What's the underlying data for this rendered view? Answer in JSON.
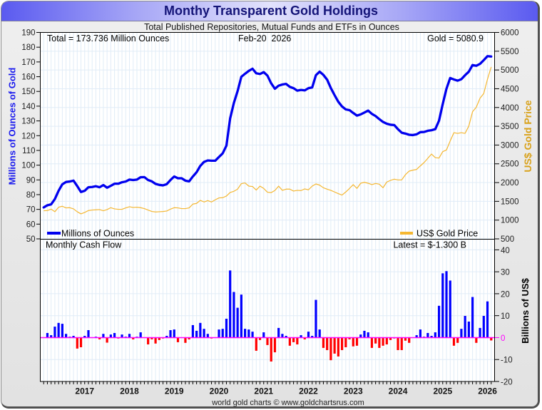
{
  "footer": "world gold charts © www.goldchartsrus.com",
  "colors": {
    "holdings": "#0000ee",
    "price": "#f5b731",
    "inflow": "#0000ff",
    "outflow": "#ff0000",
    "zero_line": "#ff00ff",
    "grid": "#e0ecf7",
    "title": "#141478"
  },
  "chart_data": [
    {
      "type": "line",
      "title": "Monthy Transparent Gold Holdings",
      "subtitle": "Total Published Repositories, Mutual Funds and ETFs in Ounces",
      "annotations": {
        "total": "Total = 173.736 Million Ounces",
        "date": "Feb-20  2026",
        "gold": "Gold = 5080.9"
      },
      "ylabel_left": "Millions of Ounces of Gold",
      "ylabel_right": "US$ Gold Price",
      "ylim_left": [
        50,
        190
      ],
      "ylim_right": [
        500,
        6000
      ],
      "y_ticks_left": [
        190,
        180,
        170,
        160,
        150,
        140,
        130,
        120,
        110,
        100,
        90,
        80,
        70,
        60,
        50
      ],
      "y_ticks_right": [
        6000,
        5500,
        5000,
        4500,
        4000,
        3500,
        3000,
        2500,
        2000,
        1500,
        1000,
        500
      ],
      "x_range": [
        "2016-01",
        "2026-03"
      ],
      "x_start": "2016-02",
      "x_tick_labels": [
        "2017",
        "2018",
        "2019",
        "2020",
        "2021",
        "2022",
        "2023",
        "2024",
        "2025",
        "2026"
      ],
      "grid": true,
      "legend": [
        "bottom-left",
        "bottom-right"
      ],
      "series": [
        {
          "name": "Millions of Ounces",
          "axis": "left",
          "values": [
            71.3,
            72.8,
            73.4,
            77.0,
            82.6,
            87.0,
            88.6,
            88.9,
            89.5,
            85.8,
            81.8,
            82.6,
            85.0,
            85.2,
            85.7,
            85.0,
            86.5,
            84.7,
            86.0,
            87.4,
            87.4,
            88.4,
            88.9,
            90.2,
            89.9,
            90.2,
            91.8,
            91.9,
            89.9,
            89.0,
            87.3,
            86.6,
            86.3,
            87.1,
            89.9,
            92.3,
            91.1,
            91.1,
            89.5,
            89.0,
            92.3,
            95.2,
            99.5,
            102.2,
            103.2,
            103.0,
            103.0,
            105.5,
            108.0,
            113.2,
            131.7,
            142.2,
            150.2,
            159.9,
            162.0,
            163.9,
            165.4,
            162.3,
            161.8,
            163.1,
            160.7,
            155.5,
            151.8,
            153.9,
            154.7,
            155.1,
            153.1,
            152.2,
            150.5,
            151.0,
            150.7,
            152.2,
            152.7,
            161.0,
            163.4,
            161.2,
            158.0,
            152.3,
            147.5,
            143.0,
            139.8,
            137.8,
            137.3,
            135.4,
            133.6,
            134.4,
            135.7,
            137.0,
            134.8,
            133.3,
            131.2,
            129.3,
            128.1,
            127.4,
            127.2,
            124.4,
            122.0,
            121.4,
            120.6,
            120.4,
            120.9,
            122.4,
            122.5,
            123.3,
            123.7,
            124.4,
            130.1,
            141.4,
            151.8,
            159.1,
            158.1,
            157.3,
            158.3,
            161.0,
            163.4,
            167.9,
            167.4,
            168.7,
            171.2,
            173.9,
            173.7
          ]
        },
        {
          "name": "US$ Gold Price",
          "axis": "right",
          "values": [
            1249,
            1255,
            1293,
            1223,
            1344,
            1369,
            1325,
            1331,
            1299,
            1223,
            1166,
            1204,
            1255,
            1268,
            1274,
            1280,
            1249,
            1280,
            1331,
            1299,
            1287,
            1287,
            1325,
            1356,
            1337,
            1344,
            1331,
            1306,
            1268,
            1230,
            1217,
            1223,
            1229,
            1242,
            1293,
            1331,
            1325,
            1306,
            1306,
            1325,
            1426,
            1445,
            1527,
            1483,
            1521,
            1483,
            1540,
            1591,
            1597,
            1641,
            1736,
            1768,
            1825,
            1971,
            1990,
            1906,
            1895,
            1800,
            1906,
            1844,
            1743,
            1733,
            1790,
            1906,
            1793,
            1825,
            1825,
            1774,
            1793,
            1787,
            1831,
            1806,
            1906,
            1963,
            1932,
            1862,
            1825,
            1793,
            1749,
            1705,
            1667,
            1749,
            1844,
            1945,
            1844,
            1982,
            2008,
            1982,
            1945,
            1976,
            1957,
            1862,
            2015,
            2058,
            2090,
            2071,
            2071,
            2210,
            2305,
            2331,
            2350,
            2445,
            2533,
            2646,
            2760,
            2665,
            2653,
            2824,
            2868,
            3109,
            3330,
            3311,
            3330,
            3311,
            3508,
            3888,
            4007,
            4248,
            4374,
            4753,
            5080.9
          ]
        }
      ]
    },
    {
      "type": "bar",
      "title": "Monthly Cash Flow",
      "annotation": "Latest = $-1.300 B",
      "ylabel_right": "Billions of US$",
      "ylim": [
        -20,
        45
      ],
      "y_ticks": [
        40,
        30,
        20,
        10,
        0,
        -10,
        -20
      ],
      "x_start": "2016-03",
      "values": [
        2.1,
        1.1,
        5.0,
        6.7,
        6.3,
        1.7,
        0.4,
        0.8,
        -5.0,
        -4.4,
        0.8,
        3.4,
        0.0,
        0.4,
        -0.8,
        1.7,
        -2.3,
        1.4,
        2.1,
        -0.4,
        1.4,
        0.4,
        1.7,
        -0.8,
        0.4,
        2.4,
        0.0,
        -3.1,
        -0.8,
        -2.7,
        -1.1,
        -0.4,
        0.8,
        3.4,
        3.7,
        -2.1,
        0.0,
        -2.4,
        -0.8,
        5.7,
        3.1,
        6.7,
        4.0,
        1.7,
        -0.4,
        0.0,
        3.7,
        4.0,
        8.6,
        30.6,
        20.8,
        13.6,
        19.6,
        4.0,
        3.7,
        2.7,
        -6.0,
        -1.1,
        2.4,
        -3.4,
        -10.9,
        -6.7,
        4.4,
        1.7,
        0.8,
        -3.7,
        -2.1,
        -3.1,
        1.1,
        -0.8,
        2.7,
        0.8,
        17.2,
        3.7,
        -4.7,
        -5.7,
        -10.3,
        -7.3,
        -8.6,
        -5.7,
        -4.4,
        -0.8,
        -4.0,
        -3.7,
        1.4,
        3.1,
        2.4,
        -4.7,
        -2.7,
        -4.7,
        -3.7,
        -3.1,
        -1.1,
        -0.4,
        -5.7,
        -5.7,
        -1.4,
        -2.4,
        0.0,
        1.1,
        3.7,
        0.4,
        2.1,
        0.8,
        2.4,
        14.5,
        29.3,
        30.3,
        26.0,
        -3.7,
        -2.4,
        4.0,
        9.9,
        7.3,
        18.5,
        -2.4,
        4.4,
        9.9,
        16.5,
        -1.3
      ]
    }
  ]
}
